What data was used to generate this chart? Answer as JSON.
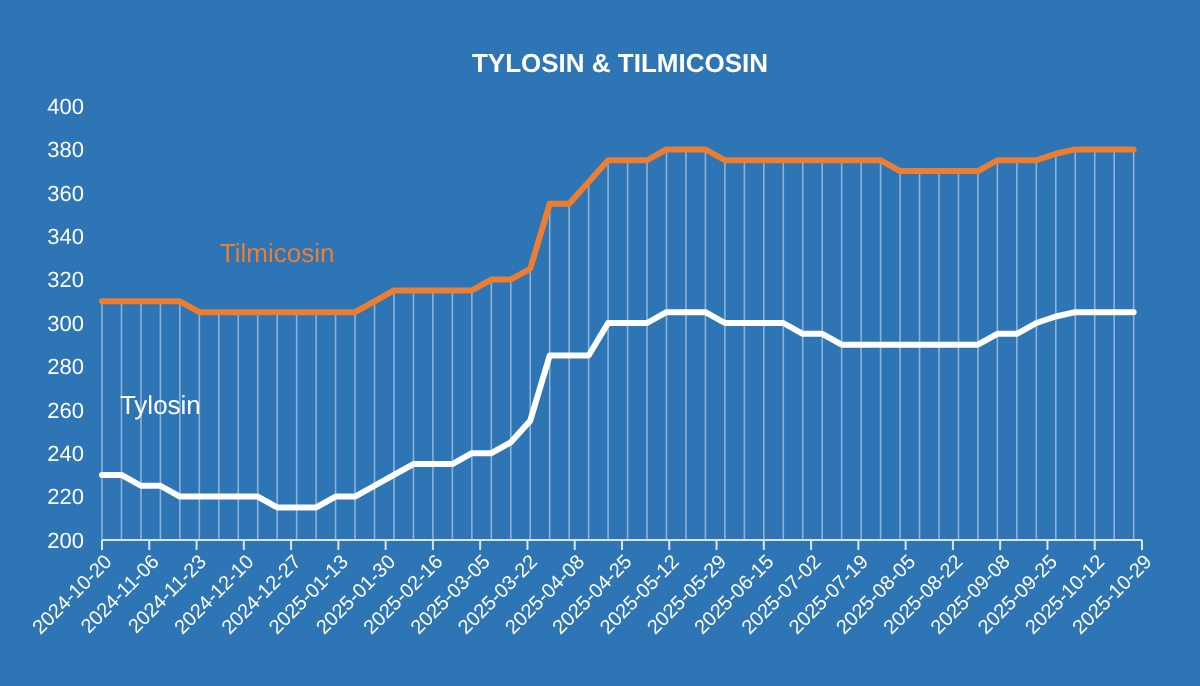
{
  "chart_data": {
    "type": "line",
    "title": "TYLOSIN & TILMICOSIN",
    "x": [
      "2024-10-20",
      "2024-10-27",
      "2024-11-03",
      "2024-11-10",
      "2024-11-17",
      "2024-11-24",
      "2024-12-01",
      "2024-12-08",
      "2024-12-15",
      "2024-12-22",
      "2024-12-29",
      "2025-01-05",
      "2025-01-12",
      "2025-01-19",
      "2025-01-26",
      "2025-02-02",
      "2025-02-09",
      "2025-02-16",
      "2025-02-23",
      "2025-03-02",
      "2025-03-09",
      "2025-03-16",
      "2025-03-23",
      "2025-03-30",
      "2025-04-06",
      "2025-04-13",
      "2025-04-20",
      "2025-04-27",
      "2025-05-04",
      "2025-05-11",
      "2025-05-18",
      "2025-05-25",
      "2025-06-01",
      "2025-06-08",
      "2025-06-15",
      "2025-06-22",
      "2025-06-29",
      "2025-07-06",
      "2025-07-13",
      "2025-07-20",
      "2025-07-27",
      "2025-08-03",
      "2025-08-10",
      "2025-08-17",
      "2025-08-24",
      "2025-08-31",
      "2025-09-07",
      "2025-09-14",
      "2025-09-21",
      "2025-09-28",
      "2025-10-05",
      "2025-10-12",
      "2025-10-19",
      "2025-10-26"
    ],
    "series": [
      {
        "name": "Tilmicosin",
        "color": "#ed7d31",
        "values": [
          310,
          310,
          310,
          310,
          310,
          305,
          305,
          305,
          305,
          305,
          305,
          305,
          305,
          305,
          310,
          315,
          315,
          315,
          315,
          315,
          320,
          320,
          325,
          355,
          355,
          365,
          375,
          375,
          375,
          380,
          380,
          380,
          375,
          375,
          375,
          375,
          375,
          375,
          375,
          375,
          375,
          370,
          370,
          370,
          370,
          370,
          375,
          375,
          375,
          378,
          380,
          380,
          380,
          380
        ]
      },
      {
        "name": "Tylosin",
        "color": "#ffffff",
        "values": [
          230,
          230,
          225,
          225,
          220,
          220,
          220,
          220,
          220,
          215,
          215,
          215,
          220,
          220,
          225,
          230,
          235,
          235,
          235,
          240,
          240,
          245,
          255,
          285,
          285,
          285,
          300,
          300,
          300,
          305,
          305,
          305,
          300,
          300,
          300,
          300,
          295,
          295,
          290,
          290,
          290,
          290,
          290,
          290,
          290,
          290,
          295,
          295,
          300,
          303,
          305,
          305,
          305,
          305
        ]
      }
    ],
    "xlim": [
      "2024-10-20",
      "2025-10-29"
    ],
    "xticks": [
      "2024-10-20",
      "2024-11-06",
      "2024-11-23",
      "2024-12-10",
      "2024-12-27",
      "2025-01-13",
      "2025-01-30",
      "2025-02-16",
      "2025-03-05",
      "2025-03-22",
      "2025-04-08",
      "2025-04-25",
      "2025-05-12",
      "2025-05-29",
      "2025-06-15",
      "2025-07-02",
      "2025-07-19",
      "2025-08-05",
      "2025-08-22",
      "2025-09-08",
      "2025-09-25",
      "2025-10-12",
      "2025-10-29"
    ],
    "ylim": [
      200,
      400
    ],
    "yticks": [
      200,
      220,
      240,
      260,
      280,
      300,
      320,
      340,
      360,
      380,
      400
    ],
    "ref_lines": [
      {
        "axis": "x",
        "value": "2024-10-20"
      },
      {
        "axis": "x",
        "value": "2024-10-27"
      },
      {
        "axis": "x",
        "value": "2024-11-03"
      },
      {
        "axis": "x",
        "value": "2024-11-10"
      },
      {
        "axis": "x",
        "value": "2024-11-17"
      },
      {
        "axis": "x",
        "value": "2024-11-24"
      },
      {
        "axis": "x",
        "value": "2024-12-01"
      },
      {
        "axis": "x",
        "value": "2024-12-08"
      },
      {
        "axis": "x",
        "value": "2024-12-15"
      },
      {
        "axis": "x",
        "value": "2024-12-22"
      },
      {
        "axis": "x",
        "value": "2024-12-29"
      },
      {
        "axis": "x",
        "value": "2025-01-05"
      },
      {
        "axis": "x",
        "value": "2025-01-12"
      },
      {
        "axis": "x",
        "value": "2025-01-19"
      },
      {
        "axis": "x",
        "value": "2025-01-26"
      },
      {
        "axis": "x",
        "value": "2025-02-02"
      },
      {
        "axis": "x",
        "value": "2025-02-09"
      },
      {
        "axis": "x",
        "value": "2025-02-16"
      },
      {
        "axis": "x",
        "value": "2025-02-23"
      },
      {
        "axis": "x",
        "value": "2025-03-02"
      },
      {
        "axis": "x",
        "value": "2025-03-09"
      },
      {
        "axis": "x",
        "value": "2025-03-16"
      },
      {
        "axis": "x",
        "value": "2025-03-23"
      },
      {
        "axis": "x",
        "value": "2025-03-30"
      },
      {
        "axis": "x",
        "value": "2025-04-06"
      },
      {
        "axis": "x",
        "value": "2025-04-13"
      },
      {
        "axis": "x",
        "value": "2025-04-20"
      },
      {
        "axis": "x",
        "value": "2025-04-27"
      },
      {
        "axis": "x",
        "value": "2025-05-04"
      },
      {
        "axis": "x",
        "value": "2025-05-11"
      },
      {
        "axis": "x",
        "value": "2025-05-18"
      },
      {
        "axis": "x",
        "value": "2025-05-25"
      },
      {
        "axis": "x",
        "value": "2025-06-01"
      },
      {
        "axis": "x",
        "value": "2025-06-08"
      },
      {
        "axis": "x",
        "value": "2025-06-15"
      },
      {
        "axis": "x",
        "value": "2025-06-22"
      },
      {
        "axis": "x",
        "value": "2025-06-29"
      },
      {
        "axis": "x",
        "value": "2025-07-06"
      },
      {
        "axis": "x",
        "value": "2025-07-13"
      },
      {
        "axis": "x",
        "value": "2025-07-20"
      },
      {
        "axis": "x",
        "value": "2025-07-27"
      },
      {
        "axis": "x",
        "value": "2025-08-03"
      },
      {
        "axis": "x",
        "value": "2025-08-10"
      },
      {
        "axis": "x",
        "value": "2025-08-17"
      },
      {
        "axis": "x",
        "value": "2025-08-24"
      },
      {
        "axis": "x",
        "value": "2025-08-31"
      },
      {
        "axis": "x",
        "value": "2025-09-07"
      },
      {
        "axis": "x",
        "value": "2025-09-14"
      },
      {
        "axis": "x",
        "value": "2025-09-21"
      },
      {
        "axis": "x",
        "value": "2025-09-28"
      },
      {
        "axis": "x",
        "value": "2025-10-05"
      },
      {
        "axis": "x",
        "value": "2025-10-12"
      },
      {
        "axis": "x",
        "value": "2025-10-19"
      },
      {
        "axis": "x",
        "value": "2025-10-26"
      }
    ],
    "grid": false,
    "legend": false,
    "marker": "none",
    "line_style": "solid"
  }
}
